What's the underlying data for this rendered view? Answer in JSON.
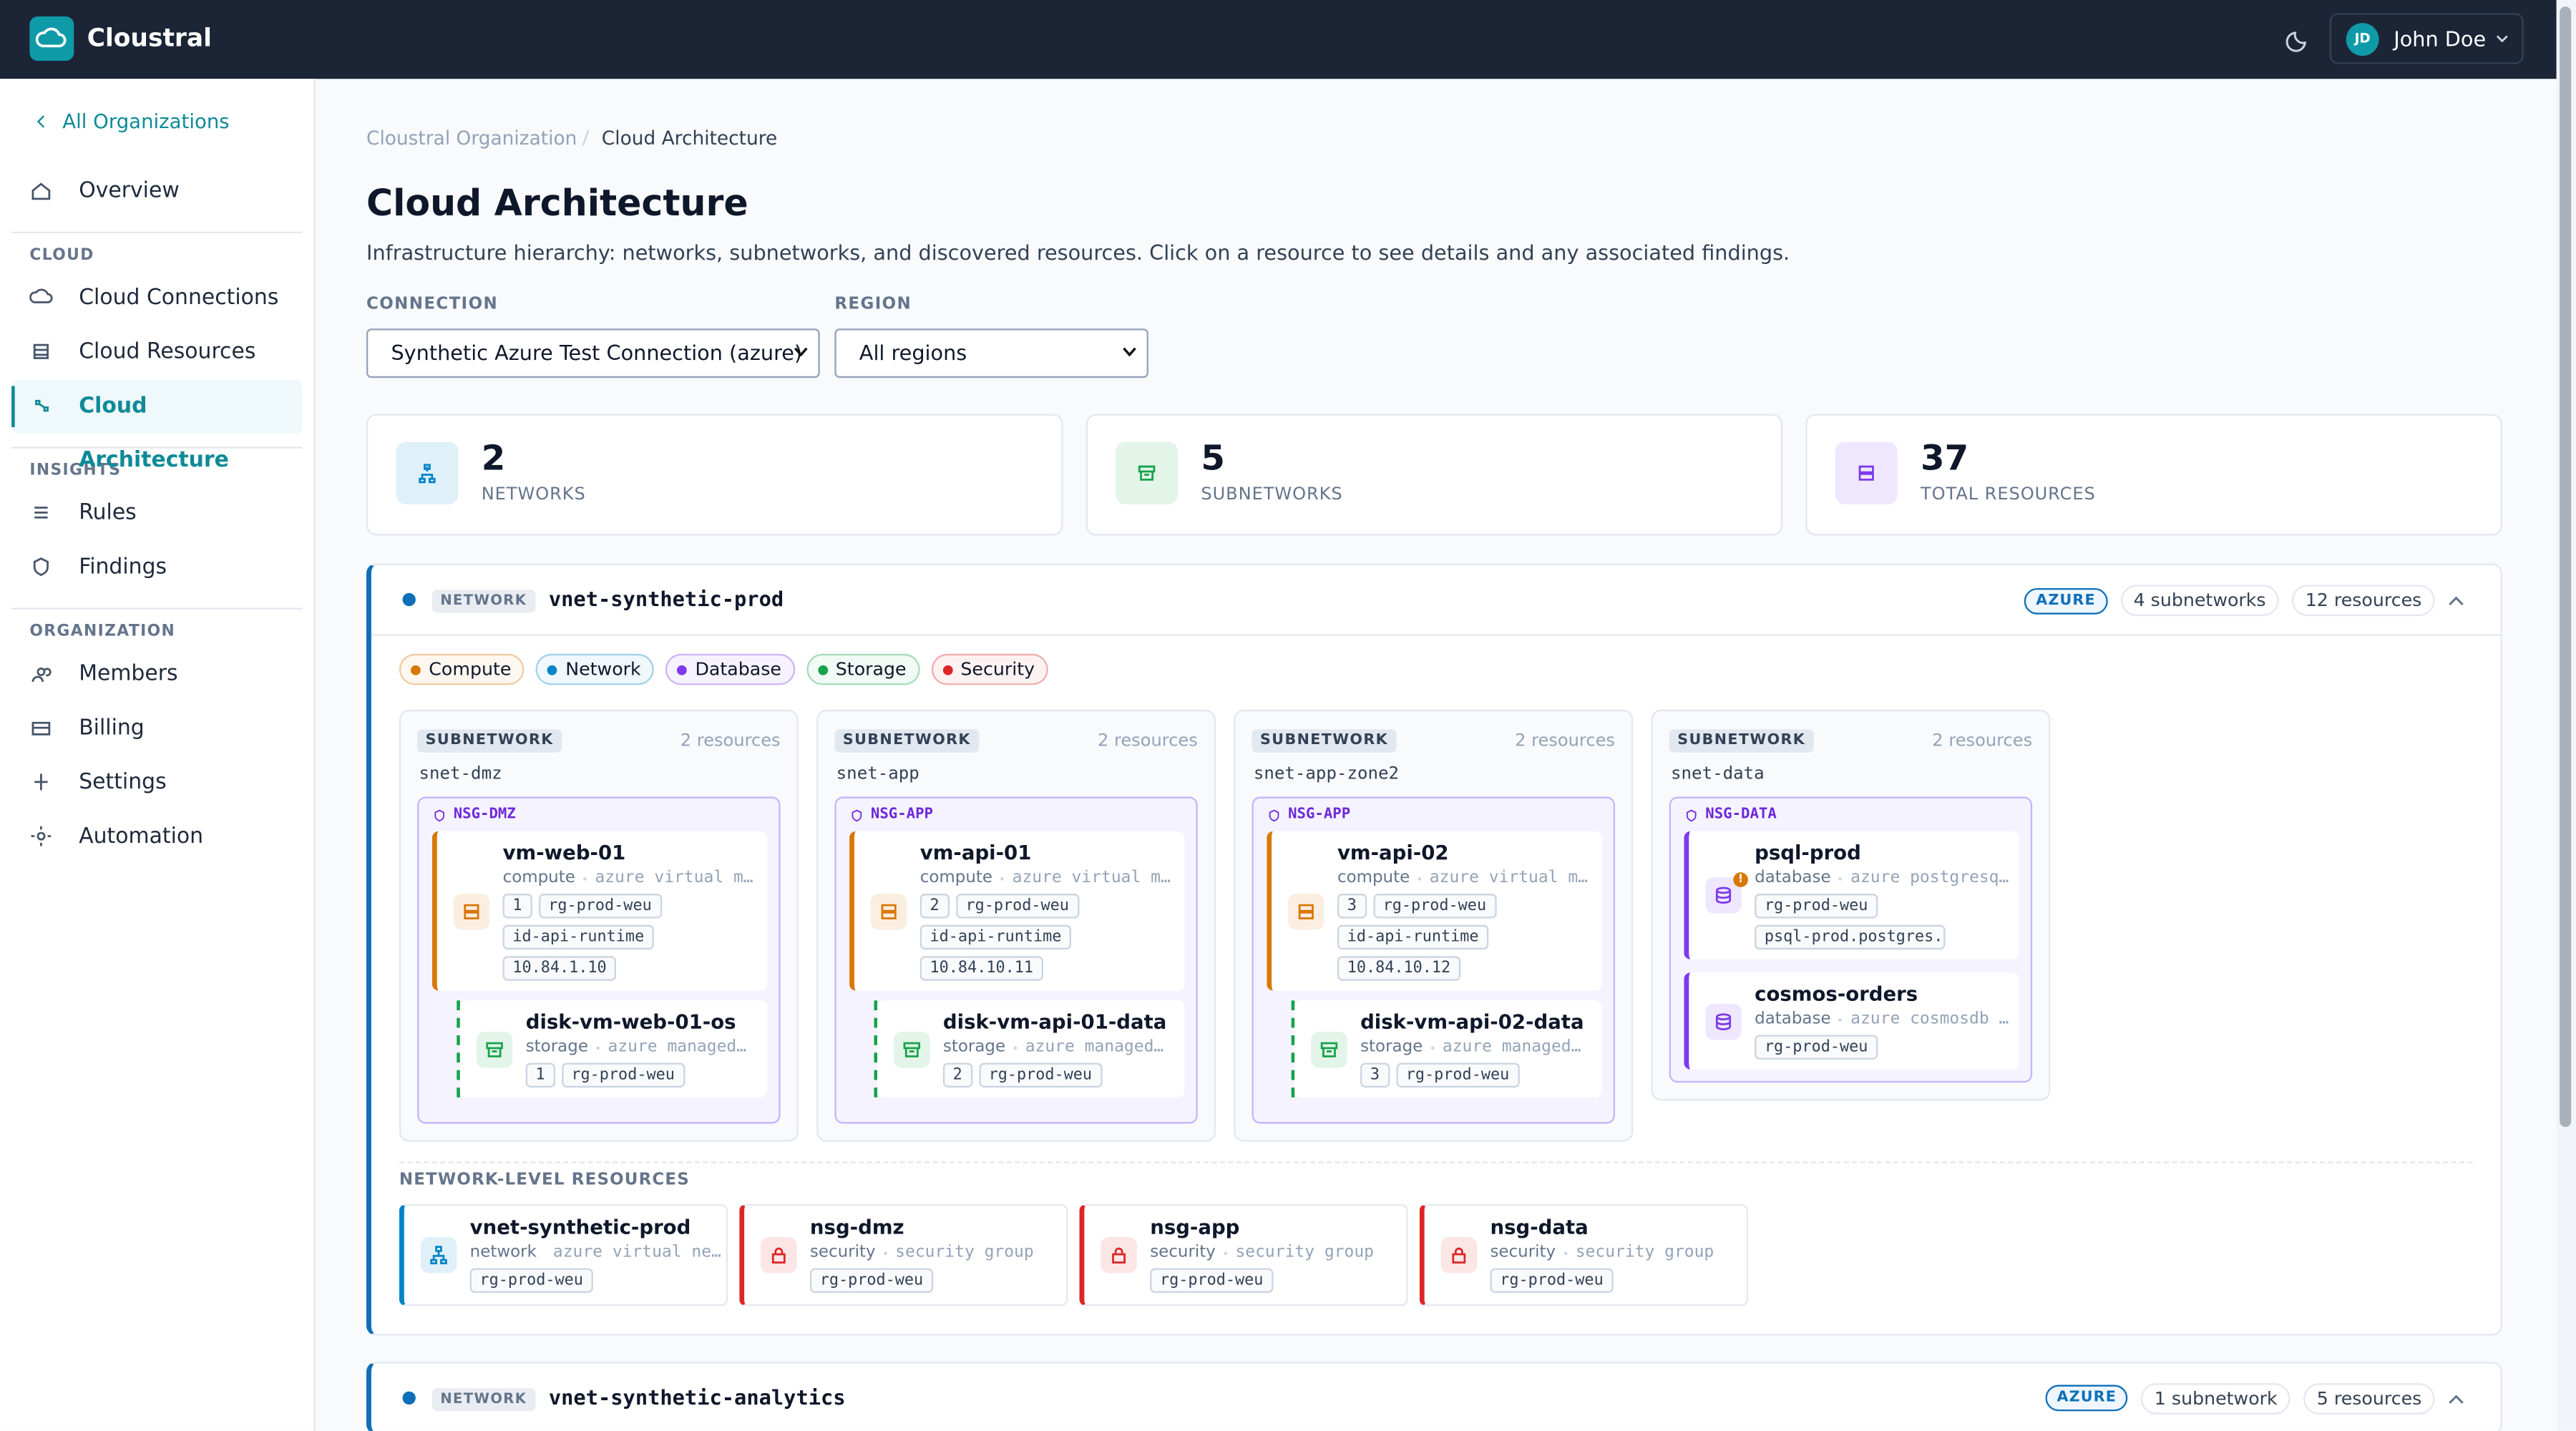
{
  "header": {
    "brand": "Cloustral",
    "user_initials": "JD",
    "user_name": "John Doe"
  },
  "sidebar": {
    "back": "All Organizations",
    "groups": [
      {
        "title": null,
        "items": [
          {
            "label": "Overview"
          }
        ]
      },
      {
        "title": "CLOUD",
        "items": [
          {
            "label": "Cloud Connections"
          },
          {
            "label": "Cloud Resources"
          },
          {
            "label": "Cloud Architecture",
            "active": true
          }
        ]
      },
      {
        "title": "INSIGHTS",
        "items": [
          {
            "label": "Rules"
          },
          {
            "label": "Findings"
          }
        ]
      },
      {
        "title": "ORGANIZATION",
        "items": [
          {
            "label": "Members"
          },
          {
            "label": "Billing"
          },
          {
            "label": "Settings"
          },
          {
            "label": "Automation"
          }
        ]
      }
    ]
  },
  "breadcrumb": [
    "Cloustral Organization",
    "Cloud Architecture"
  ],
  "page": {
    "title": "Cloud Architecture",
    "subtitle": "Infrastructure hierarchy: networks, subnetworks, and discovered resources. Click on a resource to see details and any associated findings."
  },
  "filters": [
    {
      "label": "CONNECTION",
      "value": "Synthetic Azure Test Connection (azure)"
    },
    {
      "label": "REGION",
      "value": "All regions"
    }
  ],
  "stats": [
    {
      "value": "2",
      "label": "NETWORKS",
      "color": "#0284c7"
    },
    {
      "value": "5",
      "label": "SUBNETWORKS",
      "color": "#16a34a"
    },
    {
      "value": "37",
      "label": "TOTAL RESOURCES",
      "color": "#7c3aed"
    }
  ],
  "legend": [
    {
      "label": "Compute",
      "color": "#d97706"
    },
    {
      "label": "Network",
      "color": "#0284c7"
    },
    {
      "label": "Database",
      "color": "#7c3aed"
    },
    {
      "label": "Storage",
      "color": "#16a34a"
    },
    {
      "label": "Security",
      "color": "#dc2626"
    }
  ],
  "networks": [
    {
      "kind": "NETWORK",
      "name": "vnet-synthetic-prod",
      "provider": "AZURE",
      "subnet_count": "4 subnetworks",
      "resource_count": "12 resources",
      "subnets": [
        {
          "kind": "SUBNETWORK",
          "count": "2 resources",
          "name": "snet-dmz",
          "nsg": "NSG-DMZ",
          "resources": [
            {
              "name": "vm-web-01",
              "type": "compute",
              "desc": "azure virtual m…",
              "tags": [
                "1",
                "rg-prod-weu",
                "id-api-runtime",
                "10.84.1.10"
              ],
              "children": [
                {
                  "name": "disk-vm-web-01-os",
                  "type": "storage",
                  "desc": "azure managed…",
                  "tags": [
                    "1",
                    "rg-prod-weu"
                  ]
                }
              ]
            }
          ]
        },
        {
          "kind": "SUBNETWORK",
          "count": "2 resources",
          "name": "snet-app",
          "nsg": "NSG-APP",
          "resources": [
            {
              "name": "vm-api-01",
              "type": "compute",
              "desc": "azure virtual m…",
              "tags": [
                "2",
                "rg-prod-weu",
                "id-api-runtime",
                "10.84.10.11"
              ],
              "children": [
                {
                  "name": "disk-vm-api-01-data",
                  "type": "storage",
                  "desc": "azure managed…",
                  "tags": [
                    "2",
                    "rg-prod-weu"
                  ]
                }
              ]
            }
          ]
        },
        {
          "kind": "SUBNETWORK",
          "count": "2 resources",
          "name": "snet-app-zone2",
          "nsg": "NSG-APP",
          "resources": [
            {
              "name": "vm-api-02",
              "type": "compute",
              "desc": "azure virtual m…",
              "tags": [
                "3",
                "rg-prod-weu",
                "id-api-runtime",
                "10.84.10.12"
              ],
              "children": [
                {
                  "name": "disk-vm-api-02-data",
                  "type": "storage",
                  "desc": "azure managed…",
                  "tags": [
                    "3",
                    "rg-prod-weu"
                  ]
                }
              ]
            }
          ]
        },
        {
          "kind": "SUBNETWORK",
          "count": "2 resources",
          "name": "snet-data",
          "nsg": "NSG-DATA",
          "resources": [
            {
              "name": "psql-prod",
              "type": "database",
              "desc": "azure postgresq…",
              "alert": "!",
              "tags": [
                "rg-prod-weu",
                "psql-prod.postgres.da"
              ]
            },
            {
              "name": "cosmos-orders",
              "type": "database",
              "desc": "azure cosmosdb …",
              "tags": [
                "rg-prod-weu"
              ]
            }
          ]
        }
      ],
      "level_title": "NETWORK-LEVEL RESOURCES",
      "level_resources": [
        {
          "name": "vnet-synthetic-prod",
          "type": "network",
          "desc": "azure virtual ne…",
          "tags": [
            "rg-prod-weu"
          ]
        },
        {
          "name": "nsg-dmz",
          "type": "security",
          "desc": "security group",
          "tags": [
            "rg-prod-weu"
          ]
        },
        {
          "name": "nsg-app",
          "type": "security",
          "desc": "security group",
          "tags": [
            "rg-prod-weu"
          ]
        },
        {
          "name": "nsg-data",
          "type": "security",
          "desc": "security group",
          "tags": [
            "rg-prod-weu"
          ]
        }
      ]
    },
    {
      "kind": "NETWORK",
      "name": "vnet-synthetic-analytics",
      "provider": "AZURE",
      "subnet_count": "1 subnetwork",
      "resource_count": "5 resources"
    }
  ]
}
